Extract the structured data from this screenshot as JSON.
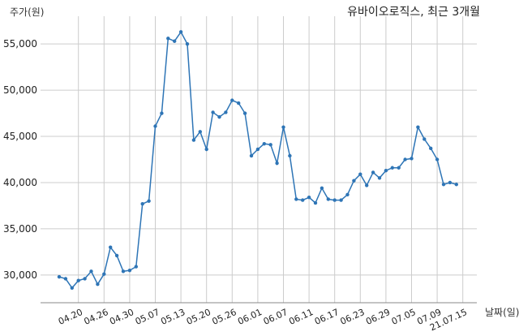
{
  "chart_data": {
    "type": "line",
    "title": "유바이오로직스, 최근 3개월",
    "ylabel": "주가(원)",
    "xlabel": "날짜(일)",
    "ylim": [
      27000,
      58000
    ],
    "yticks": [
      30000,
      35000,
      40000,
      45000,
      50000,
      55000
    ],
    "ytick_labels": [
      "30,000",
      "35,000",
      "40,000",
      "45,000",
      "50,000",
      "55,000"
    ],
    "xtick_labels": [
      "04.20",
      "04.26",
      "04.30",
      "05.07",
      "05.13",
      "05.20",
      "05.26",
      "06.01",
      "06.07",
      "06.11",
      "06.17",
      "06.23",
      "06.29",
      "07.05",
      "07.09",
      "21.07.15"
    ],
    "xtick_index": [
      3,
      7,
      11,
      15,
      19,
      23,
      27,
      31,
      35,
      39,
      43,
      47,
      51,
      55,
      59,
      63
    ],
    "grid": true,
    "color": "#2e75b6",
    "values": [
      29800,
      29600,
      28600,
      29400,
      29600,
      30400,
      29000,
      30100,
      33000,
      32100,
      30400,
      30500,
      30900,
      37700,
      38000,
      46100,
      47500,
      55600,
      55300,
      56300,
      55000,
      44600,
      45500,
      43600,
      47600,
      47100,
      47600,
      48900,
      48600,
      47500,
      42900,
      43600,
      44200,
      44100,
      42100,
      46000,
      42900,
      38200,
      38100,
      38400,
      37800,
      39400,
      38200,
      38100,
      38100,
      38700,
      40200,
      40900,
      39700,
      41100,
      40500,
      41300,
      41600,
      41600,
      42500,
      42600,
      46000,
      44700,
      43700,
      42500,
      39800,
      40000,
      39800
    ]
  }
}
